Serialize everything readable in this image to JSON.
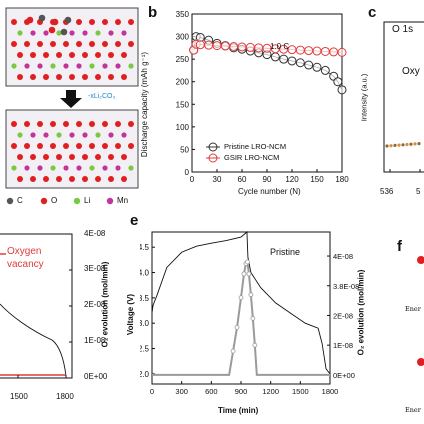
{
  "panels": {
    "a": {
      "formula": "-xLi₂CO₃",
      "legend": [
        {
          "label": "C",
          "color": "#555555"
        },
        {
          "label": "O",
          "color": "#e02020"
        },
        {
          "label": "Li",
          "color": "#7ac943"
        },
        {
          "label": "Mn",
          "color": "#c2349b"
        }
      ]
    },
    "b": {
      "letter": "b",
      "rate_label": "1.0 C",
      "ylabel": "Discharge capacity (mAh g⁻¹)",
      "xlabel": "Cycle number  (N)",
      "yticks": [
        "350",
        "300",
        "250",
        "200",
        "150",
        "100",
        "50",
        "0"
      ],
      "xticks": [
        "0",
        "30",
        "60",
        "90",
        "120",
        "150",
        "180"
      ],
      "legend": [
        "Pristine LRO-NCM",
        "GSIR LRO-NCM"
      ],
      "colors": {
        "pristine": "#333333",
        "gsir": "#e03c3c"
      }
    },
    "c": {
      "letter": "c",
      "title": "O 1s",
      "ylabel": "Intensity (a.u.)",
      "partial": "Oxy",
      "xtick0": "536",
      "xtick1": "5"
    },
    "d": {
      "legend1": "Oxygen",
      "legend2": "vacancy",
      "right_ylabel": "O₂ evolution (mol/min)",
      "right_ticks": [
        "4E-08",
        "3E-08",
        "2E-08",
        "1E-08",
        "0E+00"
      ],
      "xticks": [
        "1500",
        "1800"
      ]
    },
    "e": {
      "letter": "e",
      "title": "Pristine",
      "ylabel": "Voltage (V)",
      "xlabel": "Time (min)",
      "yticks": [
        "4.5",
        "4.0",
        "3.5",
        "3.0",
        "2.5",
        "2.0"
      ],
      "xticks": [
        "0",
        "300",
        "600",
        "900",
        "1200",
        "1500",
        "1800"
      ],
      "right_ylabel": "O₂ evolution (mol/min)",
      "right_ticks": [
        "4E-08",
        "3.8E-08",
        "2E-08",
        "1E-08",
        "0E+00"
      ]
    },
    "f": {
      "letter": "f",
      "text1": "Ener",
      "text2": "Ener"
    }
  },
  "chart_data": [
    {
      "type": "scatter",
      "title": "",
      "xlabel": "Cycle number  (N)",
      "ylabel": "Discharge capacity (mAh g⁻¹)",
      "xlim": [
        0,
        180
      ],
      "ylim": [
        0,
        350
      ],
      "annotations": [
        "1.0 C"
      ],
      "series": [
        {
          "name": "Pristine LRO-NCM",
          "x": [
            2,
            5,
            10,
            20,
            30,
            40,
            50,
            60,
            70,
            80,
            90,
            100,
            110,
            120,
            130,
            140,
            150,
            160,
            170,
            175,
            180
          ],
          "y": [
            270,
            300,
            298,
            292,
            285,
            280,
            275,
            272,
            268,
            264,
            260,
            255,
            250,
            246,
            242,
            237,
            232,
            225,
            212,
            200,
            182
          ]
        },
        {
          "name": "GSIR LRO-NCM",
          "x": [
            2,
            5,
            10,
            20,
            30,
            40,
            50,
            60,
            70,
            80,
            90,
            100,
            110,
            120,
            130,
            140,
            150,
            160,
            170,
            180
          ],
          "y": [
            270,
            283,
            282,
            281,
            280,
            279,
            278,
            277,
            276,
            275,
            274,
            273,
            272,
            271,
            270,
            269,
            268,
            267,
            266,
            265
          ]
        }
      ]
    },
    {
      "type": "line",
      "title": "Pristine",
      "xlabel": "Time (min)",
      "ylabel": "Voltage (V)",
      "xlim": [
        0,
        1800
      ],
      "ylim": [
        1.8,
        4.8
      ],
      "series": [
        {
          "name": "",
          "x": [
            0,
            10,
            50,
            150,
            300,
            450,
            600,
            750,
            900,
            960,
            970,
            1000,
            1100,
            1250,
            1400,
            1550,
            1680,
            1720,
            1760,
            1800
          ],
          "y": [
            3.2,
            3.35,
            3.55,
            4.1,
            4.4,
            4.52,
            4.58,
            4.63,
            4.7,
            4.8,
            4.3,
            4.0,
            3.7,
            3.4,
            3.2,
            3.0,
            2.9,
            2.6,
            2.1,
            2.0
          ]
        },
        {
          "name": "",
          "x": [
            0,
            780,
            820,
            860,
            900,
            930,
            950,
            965,
            980,
            1000,
            1020,
            1040,
            1060,
            1800
          ],
          "y": [
            0,
            0,
            8e-09,
            1.6e-08,
            2.6e-08,
            3.4e-08,
            3.75e-08,
            3.8e-08,
            3.4e-08,
            2.7e-08,
            1.9e-08,
            1e-08,
            0,
            0
          ]
        }
      ]
    }
  ]
}
